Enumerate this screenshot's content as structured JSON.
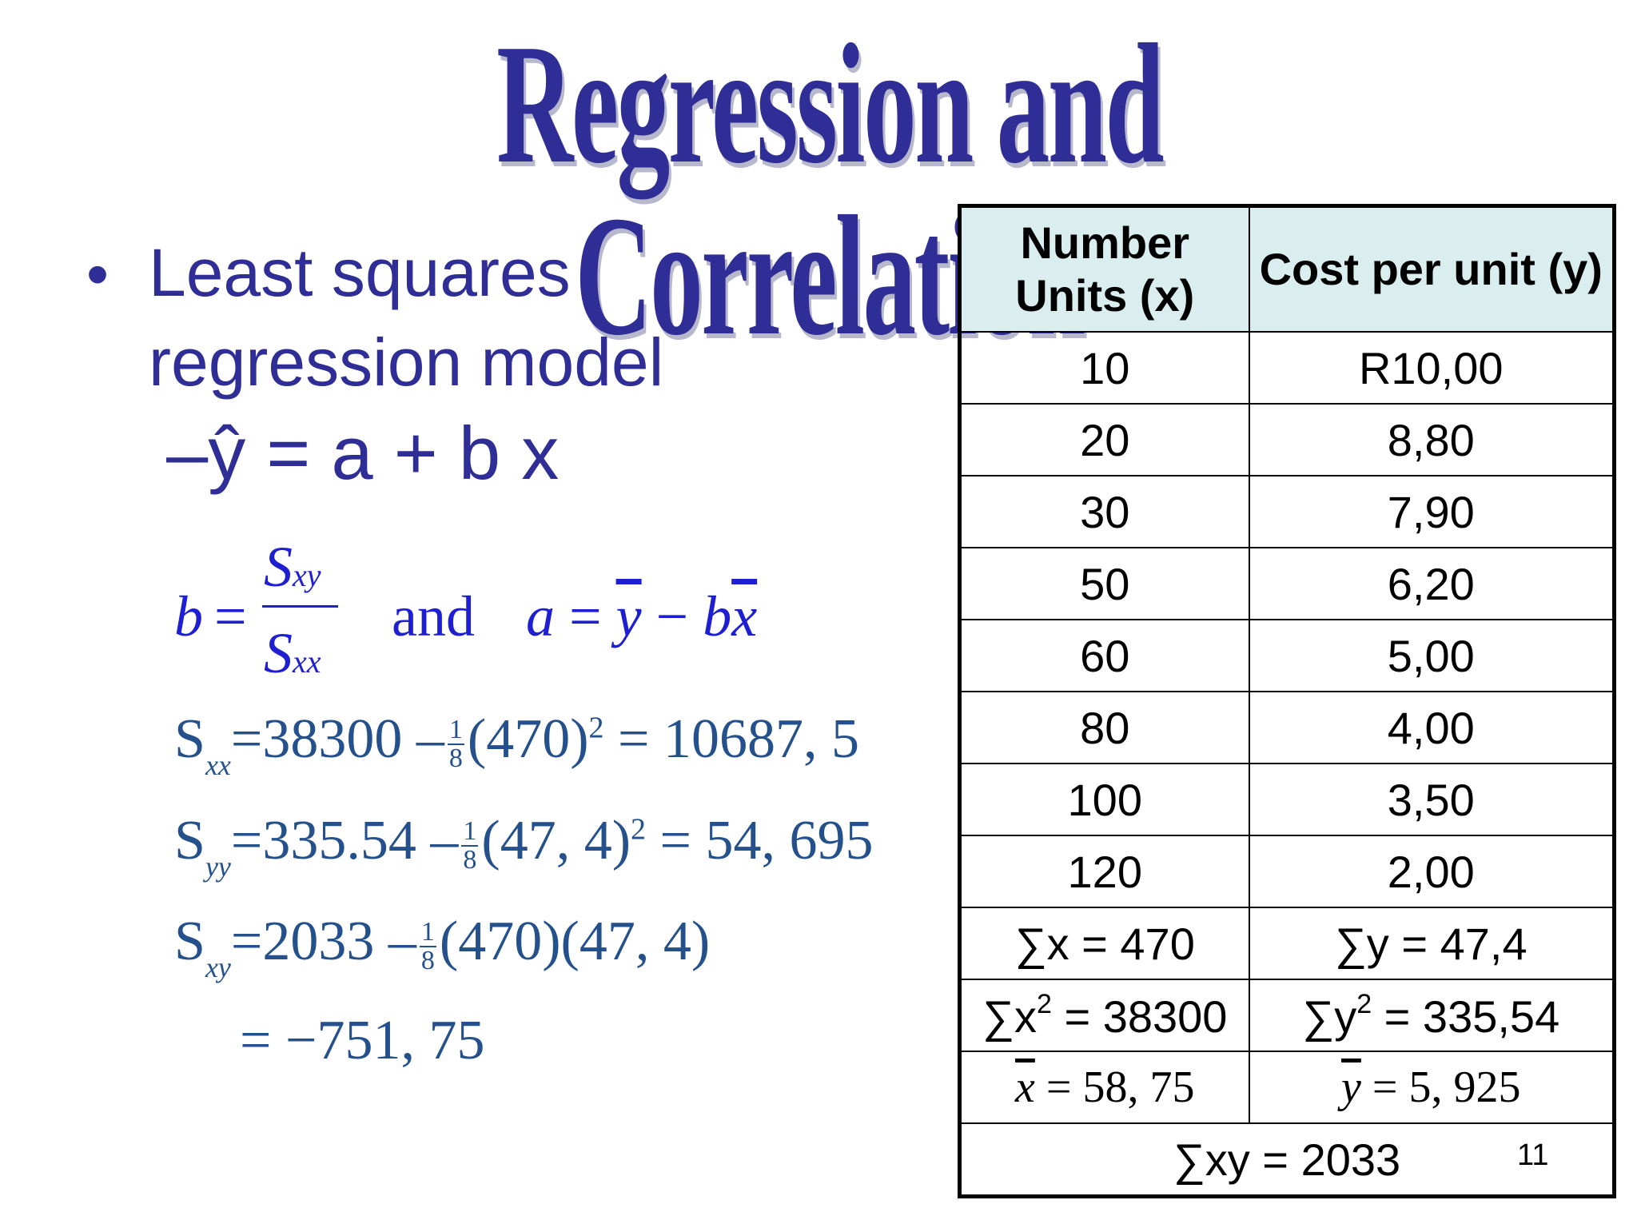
{
  "title": "Regression and Correlation",
  "bullet": {
    "symbol": "•",
    "text": "Least squares regression model"
  },
  "sub_bullet": {
    "dash": "–",
    "text": "ŷ = a + b x"
  },
  "formula": {
    "b": "b",
    "eq": "=",
    "numerator": "S",
    "numerator_sub": "xy",
    "denominator": "S",
    "denominator_sub": "xx",
    "and": "and",
    "a_expr": {
      "a": "a",
      "eq": " = ",
      "y": "y",
      "minus": " − ",
      "b": "b",
      "x": "x"
    }
  },
  "calculations": {
    "sxx": {
      "label": "S",
      "sub": "xx",
      "lead": "=38300 –",
      "frac_num": "1",
      "frac_den": "8",
      "tail": "(470)",
      "power": "2",
      "result": "= 10687, 5"
    },
    "syy": {
      "label": "S",
      "sub": "yy",
      "lead": "=335.54 –",
      "frac_num": "1",
      "frac_den": "8",
      "tail": "(47, 4)",
      "power": "2",
      "result": "= 54, 695"
    },
    "sxy": {
      "label": "S",
      "sub": "xy",
      "lead": "=2033 –",
      "frac_num": "1",
      "frac_den": "8",
      "tail": "(470)(47, 4)"
    },
    "sxy_result": "= −751, 75"
  },
  "table": {
    "headers": [
      "Number Units (x)",
      "Cost per unit (y)"
    ],
    "rows": [
      [
        "10",
        "R10,00"
      ],
      [
        "20",
        "8,80"
      ],
      [
        "30",
        "7,90"
      ],
      [
        "50",
        "6,20"
      ],
      [
        "60",
        "5,00"
      ],
      [
        "80",
        "4,00"
      ],
      [
        "100",
        "3,50"
      ],
      [
        "120",
        "2,00"
      ]
    ],
    "sum_x": "∑x = 470",
    "sum_y": "∑y = 47,4",
    "sum_x2_pre": "∑x",
    "sum_x2_sup": "2",
    "sum_x2_post": " = 38300",
    "sum_y2_pre": "∑y",
    "sum_y2_sup": "2",
    "sum_y2_post": " = 335,54",
    "mean_x_sym": "x",
    "mean_x_val": " = 58, 75",
    "mean_y_sym": "y",
    "mean_y_val": " = 5, 925",
    "sum_xy": "∑xy = 2033"
  },
  "page_number": "11"
}
